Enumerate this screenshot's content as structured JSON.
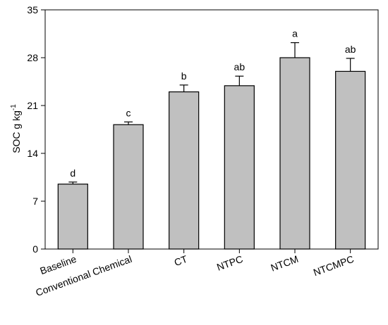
{
  "chart_data": {
    "type": "bar",
    "ylabel_main": "SOC g kg",
    "ylabel_sup": "-1",
    "xlabel": "",
    "title": "",
    "ylim": [
      0,
      35
    ],
    "yticks": [
      0,
      7,
      14,
      21,
      28,
      35
    ],
    "categories": [
      "Baseline",
      "Conventional Chemical",
      "CT",
      "NTPC",
      "NTCM",
      "NTCMPC"
    ],
    "values": [
      9.5,
      18.2,
      23.0,
      23.9,
      28.0,
      26.0
    ],
    "errors": [
      0.3,
      0.4,
      1.0,
      1.4,
      2.2,
      1.9
    ],
    "letters": [
      "d",
      "c",
      "b",
      "ab",
      "a",
      "ab"
    ],
    "grid": false,
    "colors": {
      "bar_fill": "#c0c0c0",
      "bar_stroke": "#000000"
    }
  }
}
